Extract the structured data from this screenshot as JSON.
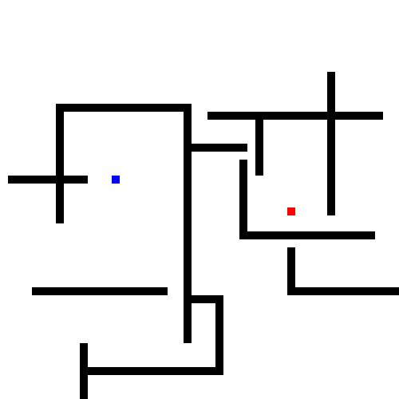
{
  "game": {
    "background_color": "#ffffff",
    "wall_color": "#000000",
    "player": {
      "color": "#0000ff"
    },
    "goal": {
      "color": "#ff0000"
    }
  }
}
